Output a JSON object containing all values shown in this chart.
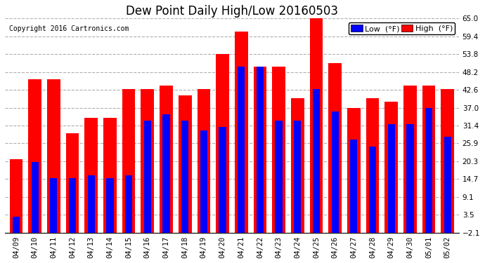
{
  "title": "Dew Point Daily High/Low 20160503",
  "copyright": "Copyright 2016 Cartronics.com",
  "legend_low": "Low  (°F)",
  "legend_high": "High  (°F)",
  "dates": [
    "04/09",
    "04/10",
    "04/11",
    "04/12",
    "04/13",
    "04/14",
    "04/15",
    "04/16",
    "04/17",
    "04/18",
    "04/19",
    "04/20",
    "04/21",
    "04/22",
    "04/23",
    "04/24",
    "04/25",
    "04/26",
    "04/27",
    "04/28",
    "04/29",
    "04/30",
    "05/01",
    "05/02"
  ],
  "high": [
    21,
    46,
    46,
    29,
    34,
    34,
    43,
    43,
    44,
    41,
    43,
    54,
    61,
    50,
    50,
    40,
    65,
    51,
    37,
    40,
    39,
    44,
    44,
    43
  ],
  "low": [
    3,
    20,
    15,
    15,
    16,
    15,
    16,
    33,
    35,
    33,
    30,
    31,
    50,
    50,
    33,
    33,
    43,
    36,
    27,
    25,
    32,
    32,
    37,
    28
  ],
  "ylim_min": -2.1,
  "ylim_max": 65.0,
  "yticks": [
    -2.1,
    3.5,
    9.1,
    14.7,
    20.3,
    25.9,
    31.4,
    37.0,
    42.6,
    48.2,
    53.8,
    59.4,
    65.0
  ],
  "low_color": "#0000ff",
  "high_color": "#ff0000",
  "bg_color": "#ffffff",
  "grid_color": "#b0b0b0",
  "bar_width": 0.7,
  "title_fontsize": 12,
  "tick_fontsize": 7.5,
  "legend_fontsize": 8
}
